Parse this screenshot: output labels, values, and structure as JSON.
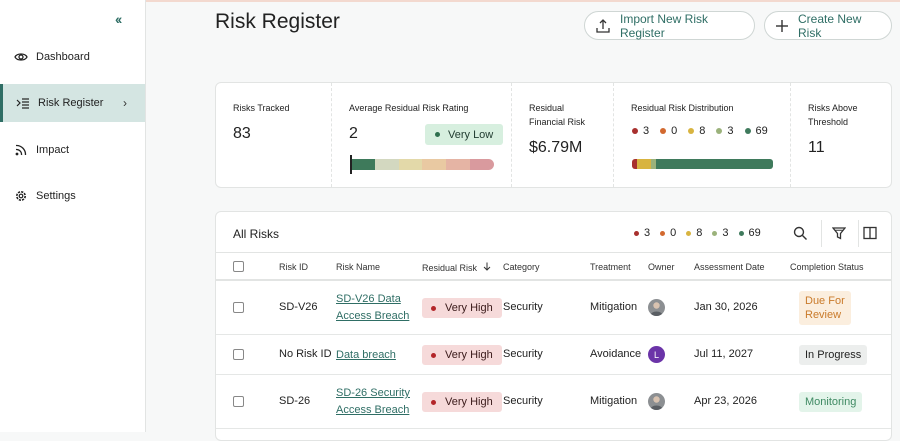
{
  "sidebar": {
    "items": [
      {
        "label": "Dashboard",
        "icon": "eye-icon"
      },
      {
        "label": "Risk Register",
        "icon": "list-indent-icon",
        "active": true
      },
      {
        "label": "Impact",
        "icon": "rss-icon"
      },
      {
        "label": "Settings",
        "icon": "gear-icon"
      }
    ]
  },
  "header": {
    "title": "Risk Register",
    "import_label": "Import New Risk Register",
    "create_label": "Create New Risk"
  },
  "summary": {
    "tracked_label": "Risks Tracked",
    "tracked_value": "83",
    "avg_label": "Average Residual Risk Rating",
    "avg_value": "2",
    "avg_badge": "Very Low",
    "financial_label_1": "Residual",
    "financial_label_2": "Financial Risk",
    "financial_value": "$6.79M",
    "dist_label": "Residual Risk Distribution",
    "distribution": [
      {
        "count": "3",
        "color": "#a8302e",
        "share": 3
      },
      {
        "count": "0",
        "color": "#d2692f",
        "share": 0
      },
      {
        "count": "8",
        "color": "#d8b440",
        "share": 8
      },
      {
        "count": "3",
        "color": "#9bb27b",
        "share": 3
      },
      {
        "count": "69",
        "color": "#3f7a5c",
        "share": 69
      }
    ],
    "above_label_1": "Risks Above",
    "above_label_2": "Threshold",
    "above_value": "11",
    "scale_colors": [
      "#3e7a5b",
      "#d3d8c0",
      "#e3d9a9",
      "#e9c9a2",
      "#e5b4a4",
      "#d99a9e"
    ]
  },
  "table": {
    "title": "All Risks",
    "columns": [
      "Risk ID",
      "Risk Name",
      "Residual Risk",
      "Category",
      "Treatment",
      "Owner",
      "Assessment Date",
      "Completion Status"
    ],
    "rows": [
      {
        "id": "SD-V26",
        "name1": "SD-V26 Data",
        "name2": "Access Breach",
        "risk": "Very High",
        "category": "Security",
        "treatment": "Mitigation",
        "owner_type": "photo",
        "owner_initial": "",
        "date": "Jan 30, 2026",
        "status1": "Due For",
        "status2": "Review",
        "status_bg": "#fbeede",
        "status_fg": "#c97a2a"
      },
      {
        "id": "No Risk ID",
        "name1": "Data breach",
        "name2": "",
        "risk": "Very High",
        "category": "Security",
        "treatment": "Avoidance",
        "owner_type": "initial",
        "owner_initial": "L",
        "date": "Jul 11, 2027",
        "status1": "In Progress",
        "status2": "",
        "status_bg": "#eceeed",
        "status_fg": "#222222"
      },
      {
        "id": "SD-26",
        "name1": "SD-26 Security",
        "name2": "Access Breach",
        "risk": "Very High",
        "category": "Security",
        "treatment": "Mitigation",
        "owner_type": "photo",
        "owner_initial": "",
        "date": "Apr 23, 2026",
        "status1": "Monitoring",
        "status2": "",
        "status_bg": "#e3f4ea",
        "status_fg": "#3f8a63"
      }
    ]
  }
}
